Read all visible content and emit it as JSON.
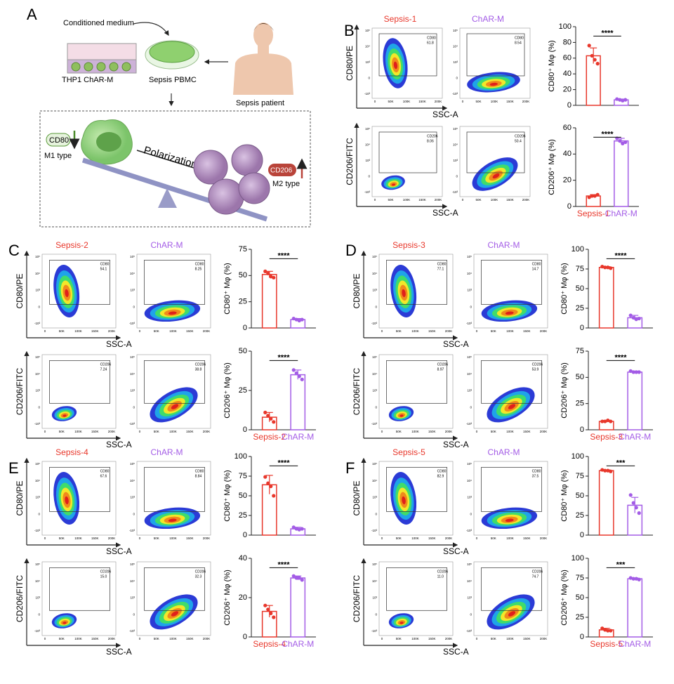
{
  "panel_A": {
    "label": "A",
    "conditioned": "Conditioned medium",
    "thp1": "THP1 ChAR-M",
    "pbmc": "Sepsis PBMC",
    "patient": "Sepsis patient",
    "cd80": "CD80",
    "m1": "M1 type",
    "polarization": "Polarization",
    "cd206": "CD206",
    "m2": "M2 type"
  },
  "colors": [
    "#e8372b",
    "#a35ce6"
  ],
  "flow_axes": {
    "xlabel": "SSC-A",
    "xticks": [
      "0",
      "50K",
      "100K",
      "150K",
      "200K"
    ],
    "yticks": [
      "10⁵",
      "10⁴",
      "10³",
      "0",
      "-10³"
    ]
  },
  "panels": [
    {
      "label": "B",
      "sample": "Sepsis-1",
      "control": "ChAR-M",
      "flow": [
        {
          "marker": "CD80",
          "ylabel": "CD80/PE",
          "gates": [
            "61.8",
            "8.54"
          ]
        },
        {
          "marker": "CD206",
          "ylabel": "CD206/FITC",
          "gates": [
            "8.06",
            "50.4"
          ]
        }
      ],
      "bars": [
        {
          "ylabel": "CD80⁺ Mφ (%)",
          "ylim": [
            0,
            100
          ],
          "yticks": [
            0,
            20,
            40,
            60,
            80,
            100
          ],
          "values": [
            63,
            7
          ],
          "errors": [
            10,
            1
          ],
          "points": [
            [
              76,
              63,
              58,
              53
            ],
            [
              8,
              7,
              6,
              7
            ]
          ],
          "significance": "****"
        },
        {
          "ylabel": "CD206⁺ Mφ (%)",
          "ylim": [
            0,
            60
          ],
          "yticks": [
            0,
            20,
            40,
            60
          ],
          "values": [
            8,
            50
          ],
          "errors": [
            1,
            2
          ],
          "points": [
            [
              7,
              8,
              8,
              9
            ],
            [
              52,
              50,
              48,
              49
            ]
          ],
          "significance": "****"
        }
      ]
    },
    {
      "label": "C",
      "sample": "Sepsis-2",
      "control": "ChAR-M",
      "flow": [
        {
          "marker": "CD80",
          "ylabel": "CD80/PE",
          "gates": [
            "54.1",
            "8.25"
          ]
        },
        {
          "marker": "CD206",
          "ylabel": "CD206/FITC",
          "gates": [
            "7.24",
            "38.8"
          ]
        }
      ],
      "bars": [
        {
          "ylabel": "CD80⁺ Mφ (%)",
          "ylim": [
            0,
            75
          ],
          "yticks": [
            0,
            25,
            50,
            75
          ],
          "values": [
            51,
            8
          ],
          "errors": [
            3,
            1
          ],
          "points": [
            [
              54,
              52,
              49,
              48
            ],
            [
              9,
              8,
              7,
              8
            ]
          ],
          "significance": "****"
        },
        {
          "ylabel": "CD206⁺ Mφ (%)",
          "ylim": [
            0,
            50
          ],
          "yticks": [
            0,
            25,
            50
          ],
          "values": [
            8,
            35
          ],
          "errors": [
            3,
            3
          ],
          "points": [
            [
              11,
              9,
              7,
              5
            ],
            [
              38,
              36,
              34,
              32
            ]
          ],
          "significance": "****"
        }
      ]
    },
    {
      "label": "D",
      "sample": "Sepsis-3",
      "control": "ChAR-M",
      "flow": [
        {
          "marker": "CD80",
          "ylabel": "CD80/PE",
          "gates": [
            "77.1",
            "14.7"
          ]
        },
        {
          "marker": "CD206",
          "ylabel": "CD206/FITC",
          "gates": [
            "8.97",
            "53.9"
          ]
        }
      ],
      "bars": [
        {
          "ylabel": "CD80⁺ Mφ (%)",
          "ylim": [
            0,
            100
          ],
          "yticks": [
            0,
            25,
            50,
            75,
            100
          ],
          "values": [
            77,
            13
          ],
          "errors": [
            1,
            3
          ],
          "points": [
            [
              78,
              77,
              77,
              76
            ],
            [
              16,
              13,
              11,
              12
            ]
          ],
          "significance": "****"
        },
        {
          "ylabel": "CD206⁺ Mφ (%)",
          "ylim": [
            0,
            75
          ],
          "yticks": [
            0,
            25,
            50,
            75
          ],
          "values": [
            8,
            55
          ],
          "errors": [
            1,
            1
          ],
          "points": [
            [
              8,
              8,
              9,
              8
            ],
            [
              56,
              55,
              55,
              55
            ]
          ],
          "significance": "****"
        }
      ]
    },
    {
      "label": "E",
      "sample": "Sepsis-4",
      "control": "ChAR-M",
      "flow": [
        {
          "marker": "CD80",
          "ylabel": "CD80/PE",
          "gates": [
            "67.6",
            "8.84"
          ]
        },
        {
          "marker": "CD206",
          "ylabel": "CD206/FITC",
          "gates": [
            "15.0",
            "32.3"
          ]
        }
      ],
      "bars": [
        {
          "ylabel": "CD80⁺ Mφ (%)",
          "ylim": [
            0,
            100
          ],
          "yticks": [
            0,
            25,
            50,
            75,
            100
          ],
          "values": [
            64,
            8
          ],
          "errors": [
            12,
            2
          ],
          "points": [
            [
              74,
              66,
              62,
              50
            ],
            [
              10,
              8,
              7,
              8
            ]
          ],
          "significance": "****"
        },
        {
          "ylabel": "CD206⁺ Mφ (%)",
          "ylim": [
            0,
            40
          ],
          "yticks": [
            0,
            20,
            40
          ],
          "values": [
            13,
            30
          ],
          "errors": [
            3,
            1
          ],
          "points": [
            [
              16,
              14,
              12,
              10
            ],
            [
              31,
              30,
              30,
              29
            ]
          ],
          "significance": "****"
        }
      ]
    },
    {
      "label": "F",
      "sample": "Sepsis-5",
      "control": "ChAR-M",
      "flow": [
        {
          "marker": "CD80",
          "ylabel": "CD80/PE",
          "gates": [
            "82.9",
            "37.5"
          ]
        },
        {
          "marker": "CD206",
          "ylabel": "CD206/FITC",
          "gates": [
            "11.0",
            "74.7"
          ]
        }
      ],
      "bars": [
        {
          "ylabel": "CD80⁺ Mφ (%)",
          "ylim": [
            0,
            100
          ],
          "yticks": [
            0,
            25,
            50,
            75,
            100
          ],
          "values": [
            82,
            38
          ],
          "errors": [
            1,
            10
          ],
          "points": [
            [
              83,
              82,
              82,
              81
            ],
            [
              51,
              41,
              35,
              28
            ]
          ],
          "significance": "***"
        },
        {
          "ylabel": "CD206⁺ Mφ (%)",
          "ylim": [
            0,
            100
          ],
          "yticks": [
            0,
            25,
            50,
            75,
            100
          ],
          "values": [
            9,
            74
          ],
          "errors": [
            2,
            1
          ],
          "points": [
            [
              11,
              9,
              8,
              8
            ],
            [
              75,
              74,
              74,
              73
            ]
          ],
          "significance": "***"
        }
      ]
    }
  ]
}
